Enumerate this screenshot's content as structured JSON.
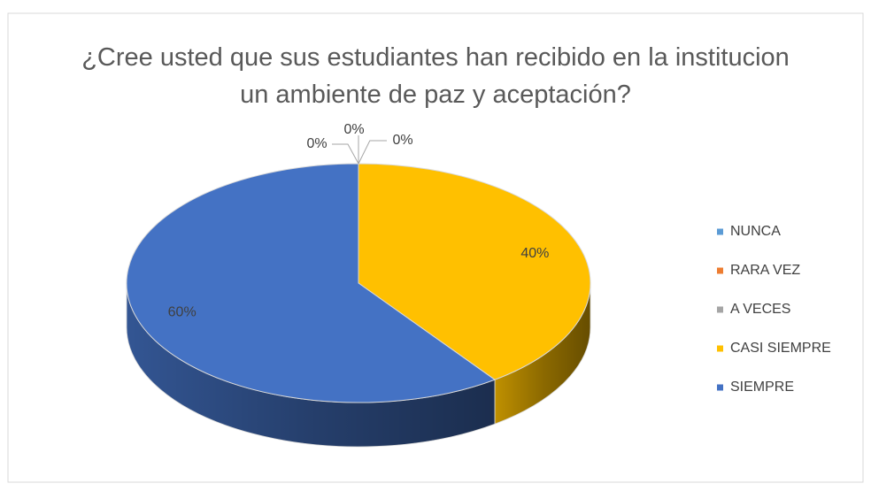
{
  "chart_data": {
    "type": "pie",
    "title": "¿Cree usted que sus estudiantes han recibido en la institucion un ambiente de paz y aceptación?",
    "categories": [
      "NUNCA",
      "RARA VEZ",
      "A VECES",
      "CASI SIEMPRE",
      "SIEMPRE"
    ],
    "values": [
      0,
      0,
      0,
      40,
      60
    ],
    "value_labels": [
      "0%",
      "0%",
      "0%",
      "40%",
      "60%"
    ],
    "colors": [
      "#5B9BD5",
      "#ED7D31",
      "#A5A5A5",
      "#FFC000",
      "#4472C4"
    ],
    "legend": "right"
  }
}
